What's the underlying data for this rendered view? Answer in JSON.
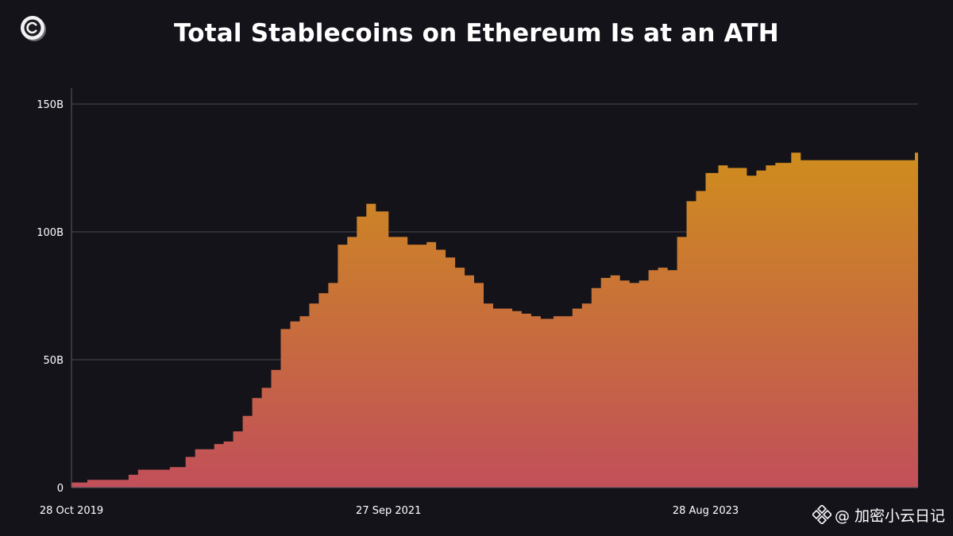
{
  "header": {
    "title": "Total Stablecoins on Ethereum Is at an ATH"
  },
  "logo": {
    "icon": "c-coin-logo-icon"
  },
  "watermark": {
    "icon": "binance-diamond-icon",
    "text": "@ 加密小云日记"
  },
  "colors": {
    "background": "#14131a",
    "area_top": "#cf8d1d",
    "area_bottom": "#c14f5a",
    "grid": "#4a4852"
  },
  "chart_data": {
    "type": "area",
    "title": "Total Stablecoins on Ethereum Is at an ATH",
    "xlabel": "",
    "ylabel": "",
    "y_unit": "B",
    "ylim": [
      0,
      150
    ],
    "y_ticks": [
      {
        "value": 0,
        "label": "0"
      },
      {
        "value": 50,
        "label": "50B"
      },
      {
        "value": 100,
        "label": "100B"
      },
      {
        "value": 150,
        "label": "150B"
      }
    ],
    "x_range": [
      "2019-10-28",
      "2024-12-09"
    ],
    "x_ticks": [
      {
        "date": "2019-10-28",
        "label": "28 Oct 2019"
      },
      {
        "date": "2021-09-27",
        "label": "27 Sep 2021"
      },
      {
        "date": "2023-08-28",
        "label": "28 Aug 2023"
      }
    ],
    "grid": true,
    "legend": "none",
    "series": [
      {
        "x": [
          "2019-10-28",
          "2019-12-02",
          "2020-01-06",
          "2020-02-03",
          "2020-03-02",
          "2020-03-23",
          "2020-04-13",
          "2020-05-04",
          "2020-06-01",
          "2020-07-06",
          "2020-07-27",
          "2020-08-17",
          "2020-09-07",
          "2020-09-28",
          "2020-10-19",
          "2020-11-09",
          "2020-11-30",
          "2020-12-21",
          "2021-01-11",
          "2021-02-01",
          "2021-02-22",
          "2021-03-15",
          "2021-04-05",
          "2021-04-26",
          "2021-05-17",
          "2021-06-07",
          "2021-06-28",
          "2021-07-19",
          "2021-08-09",
          "2021-08-30",
          "2021-09-27",
          "2021-10-18",
          "2021-11-08",
          "2021-11-29",
          "2021-12-20",
          "2022-01-10",
          "2022-01-31",
          "2022-02-21",
          "2022-03-14",
          "2022-04-04",
          "2022-04-25",
          "2022-05-16",
          "2022-06-06",
          "2022-06-27",
          "2022-07-18",
          "2022-08-08",
          "2022-08-29",
          "2022-09-26",
          "2022-10-17",
          "2022-11-07",
          "2022-11-28",
          "2022-12-19",
          "2023-01-09",
          "2023-01-30",
          "2023-02-20",
          "2023-03-13",
          "2023-04-03",
          "2023-04-24",
          "2023-05-15",
          "2023-06-05",
          "2023-06-26",
          "2023-07-17",
          "2023-08-07",
          "2023-08-28",
          "2023-09-25",
          "2023-10-16",
          "2023-11-06",
          "2023-11-27",
          "2023-12-18",
          "2024-01-08",
          "2024-01-29",
          "2024-02-12",
          "2024-03-04",
          "2024-03-25",
          "2024-04-15",
          "2024-05-06",
          "2024-05-27",
          "2024-06-17",
          "2024-07-08",
          "2024-07-29",
          "2024-08-19",
          "2024-09-09",
          "2024-09-30",
          "2024-10-21",
          "2024-11-11",
          "2024-12-02",
          "2024-12-09"
        ],
        "values": [
          2,
          3,
          3,
          3,
          5,
          7,
          7,
          7,
          8,
          12,
          15,
          15,
          17,
          18,
          22,
          28,
          35,
          39,
          46,
          62,
          65,
          67,
          72,
          76,
          80,
          95,
          98,
          106,
          111,
          108,
          98,
          98,
          95,
          95,
          96,
          93,
          90,
          86,
          83,
          80,
          72,
          70,
          70,
          69,
          68,
          67,
          66,
          67,
          67,
          70,
          72,
          78,
          82,
          83,
          81,
          80,
          81,
          85,
          86,
          85,
          98,
          112,
          116,
          123,
          126,
          125,
          125,
          122,
          124,
          126,
          127,
          127,
          131,
          128,
          128,
          128,
          128,
          128,
          128,
          128,
          128,
          128,
          128,
          128,
          128,
          131,
          128
        ]
      }
    ]
  }
}
